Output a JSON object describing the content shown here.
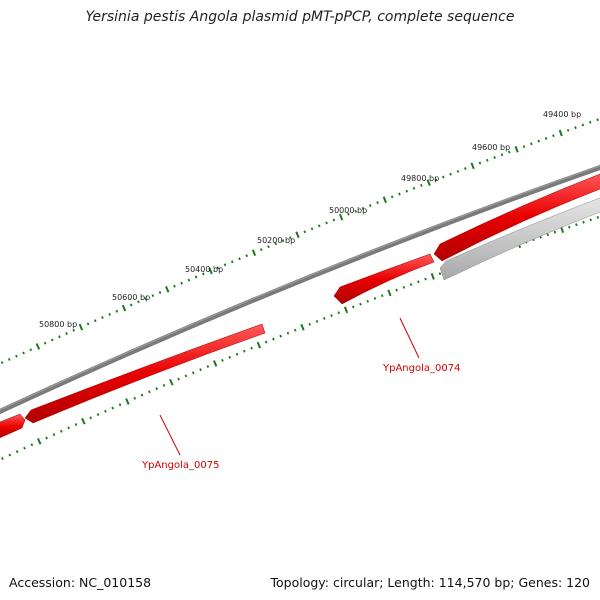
{
  "title": "Yersinia pestis Angola plasmid pMT-pPCP, complete sequence",
  "footer": {
    "accession": "Accession: NC_010158",
    "summary": "Topology: circular; Length: 114,570 bp; Genes: 120"
  },
  "ruler": {
    "labels": [
      "49400 bp",
      "49600 bp",
      "49800 bp",
      "50000 bp",
      "50200 bp",
      "50400 bp",
      "50600 bp",
      "50800 bp"
    ]
  },
  "genes": [
    {
      "name": "YpAngola_0074"
    },
    {
      "name": "YpAngola_0075"
    }
  ],
  "colors": {
    "backbone": "#7a7a7a",
    "forward_gene": "#e80000",
    "reverse_gene": "#c8c8c8",
    "tick": "#1a7a1a",
    "gene_label": "#d40000"
  }
}
